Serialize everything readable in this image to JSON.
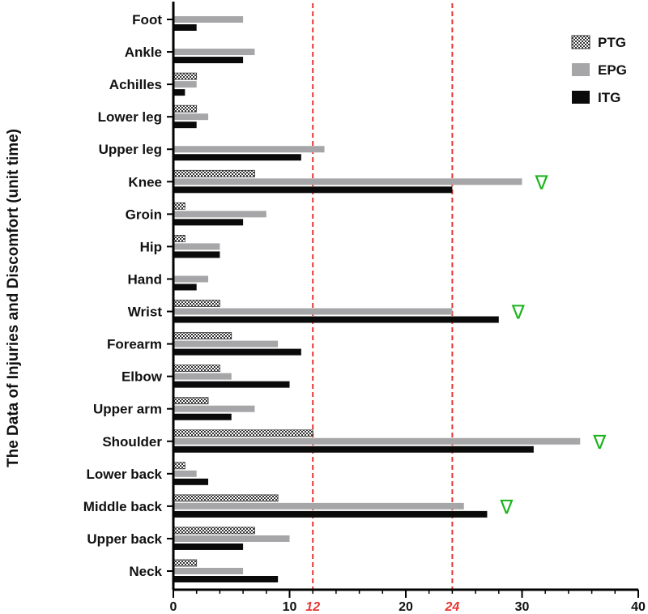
{
  "chart_data": {
    "type": "bar",
    "orientation": "horizontal",
    "title": "",
    "ylabel": "The Data of Injuries and Discomfort (unit time)",
    "xlabel": "",
    "xlim": [
      0,
      40
    ],
    "xticks": [
      0,
      10,
      20,
      30,
      40
    ],
    "reference_lines": [
      {
        "value": 12,
        "label": "12",
        "color": "#e53935"
      },
      {
        "value": 24,
        "label": "24",
        "color": "#e53935"
      }
    ],
    "categories": [
      "Foot",
      "Ankle",
      "Achilles",
      "Lower leg",
      "Upper leg",
      "Knee",
      "Groin",
      "Hip",
      "Hand",
      "Wrist",
      "Forearm",
      "Elbow",
      "Upper arm",
      "Shoulder",
      "Lower back",
      "Middle back",
      "Upper back",
      "Neck"
    ],
    "series": [
      {
        "name": "PTG",
        "pattern": "checker",
        "values": [
          0,
          0,
          2,
          2,
          0,
          7,
          1,
          1,
          0,
          4,
          5,
          4,
          3,
          12,
          1,
          9,
          7,
          2
        ]
      },
      {
        "name": "EPG",
        "color": "#a6a6a8",
        "values": [
          6,
          7,
          2,
          3,
          13,
          30,
          8,
          4,
          3,
          24,
          9,
          5,
          7,
          35,
          2,
          25,
          10,
          6
        ]
      },
      {
        "name": "ITG",
        "color": "#0a0a0a",
        "values": [
          2,
          6,
          1,
          2,
          11,
          24,
          6,
          4,
          2,
          28,
          11,
          10,
          5,
          31,
          3,
          27,
          6,
          9
        ]
      }
    ],
    "markers": [
      {
        "category": "Knee",
        "symbol": "∇",
        "color": "#1db31d"
      },
      {
        "category": "Wrist",
        "symbol": "∇",
        "color": "#1db31d"
      },
      {
        "category": "Shoulder",
        "symbol": "∇",
        "color": "#1db31d"
      },
      {
        "category": "Middle back",
        "symbol": "∇",
        "color": "#1db31d"
      }
    ],
    "legend": {
      "position": "top-right"
    },
    "grid": false
  }
}
